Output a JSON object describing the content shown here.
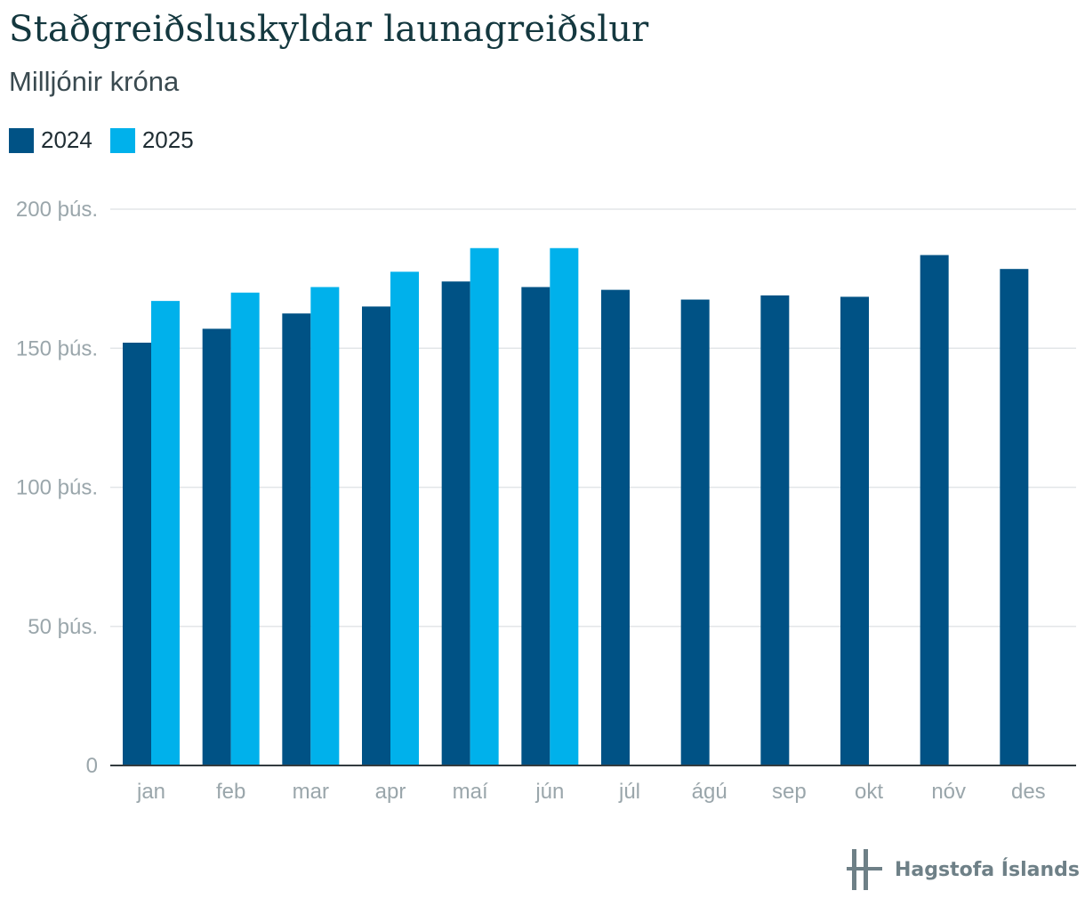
{
  "chart_data": {
    "type": "bar",
    "title": "Staðgreiðsluskyldar launagreiðslur",
    "subtitle": "Milljónir króna",
    "categories": [
      "jan",
      "feb",
      "mar",
      "apr",
      "maí",
      "jún",
      "júl",
      "ágú",
      "sep",
      "okt",
      "nóv",
      "des"
    ],
    "series": [
      {
        "name": "2024",
        "color": "#005285",
        "values": [
          152000,
          157000,
          162500,
          165000,
          174000,
          172000,
          171000,
          167500,
          169000,
          168500,
          183500,
          178500
        ]
      },
      {
        "name": "2025",
        "color": "#00b1eb",
        "values": [
          167000,
          170000,
          172000,
          177500,
          186000,
          186000,
          null,
          null,
          null,
          null,
          null,
          null
        ]
      }
    ],
    "ylim": [
      0,
      200000
    ],
    "yticks": [
      0,
      50000,
      100000,
      150000,
      200000
    ],
    "ytick_labels": [
      "0",
      "50 þús.",
      "100 þús.",
      "150 þús.",
      "200 þús."
    ],
    "grid": true,
    "legend": "top-left"
  },
  "branding": {
    "logo_text": "Hagstofa Íslands",
    "logo_color": "#6e8087"
  }
}
